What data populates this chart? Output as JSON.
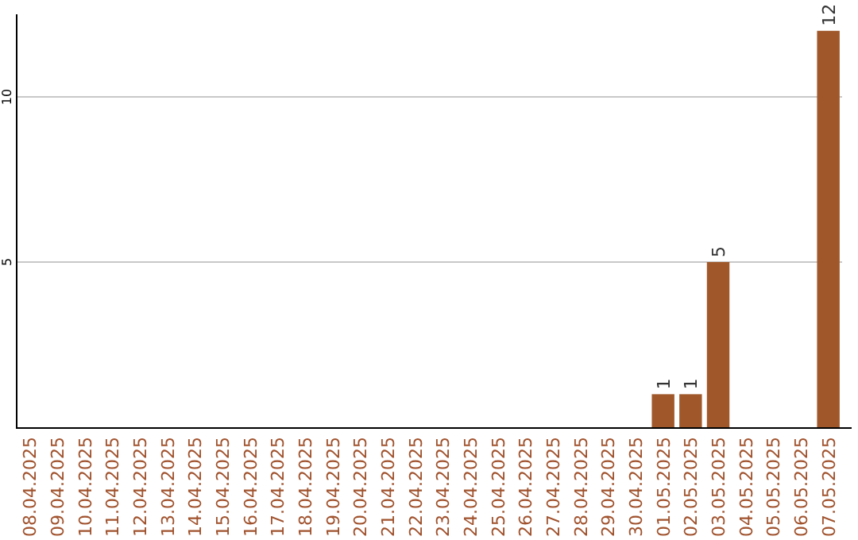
{
  "chart_data": {
    "type": "bar",
    "categories": [
      "08.04.2025",
      "09.04.2025",
      "10.04.2025",
      "11.04.2025",
      "12.04.2025",
      "13.04.2025",
      "14.04.2025",
      "15.04.2025",
      "16.04.2025",
      "17.04.2025",
      "18.04.2025",
      "19.04.2025",
      "20.04.2025",
      "21.04.2025",
      "22.04.2025",
      "23.04.2025",
      "24.04.2025",
      "25.04.2025",
      "26.04.2025",
      "27.04.2025",
      "28.04.2025",
      "29.04.2025",
      "30.04.2025",
      "01.05.2025",
      "02.05.2025",
      "03.05.2025",
      "04.05.2025",
      "05.05.2025",
      "06.05.2025",
      "07.05.2025"
    ],
    "values": [
      0,
      0,
      0,
      0,
      0,
      0,
      0,
      0,
      0,
      0,
      0,
      0,
      0,
      0,
      0,
      0,
      0,
      0,
      0,
      0,
      0,
      0,
      0,
      1,
      1,
      5,
      0,
      0,
      0,
      12
    ],
    "value_labels": [
      null,
      null,
      null,
      null,
      null,
      null,
      null,
      null,
      null,
      null,
      null,
      null,
      null,
      null,
      null,
      null,
      null,
      null,
      null,
      null,
      null,
      null,
      null,
      "1",
      "1",
      "5",
      null,
      null,
      null,
      "12"
    ],
    "color": "#a0582a",
    "ylim": [
      0,
      12.5
    ],
    "yticks": [
      5,
      10
    ],
    "grid": "y"
  }
}
